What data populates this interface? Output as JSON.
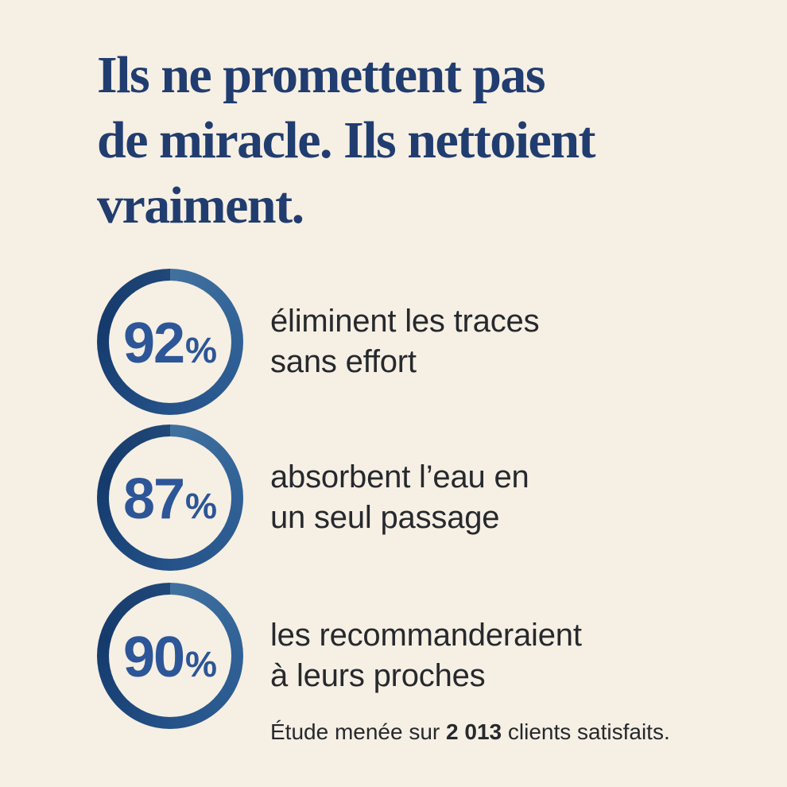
{
  "headline": {
    "lines": [
      "Ils ne promettent pas",
      "de miracle. Ils nettoient",
      "vraiment."
    ]
  },
  "stats": [
    {
      "value": "92",
      "unit": "%",
      "lines": [
        "éliminent les traces",
        "sans effort"
      ]
    },
    {
      "value": "87",
      "unit": "%",
      "lines": [
        "absorbent l’eau en",
        "un seul passage"
      ]
    },
    {
      "value": "90",
      "unit": "%",
      "lines": [
        "les recommanderaient",
        "à leurs proches"
      ]
    }
  ],
  "footnote": {
    "prefix": "Étude menée sur ",
    "count": "2 013",
    "suffix": " clients satisfaits."
  },
  "colors": {
    "background": "#f6efe4",
    "headline": "#213d6f",
    "percent": "#2c5697",
    "body_text": "#26292d",
    "ring_light": "#41719f",
    "ring_dark": "#15386b"
  }
}
